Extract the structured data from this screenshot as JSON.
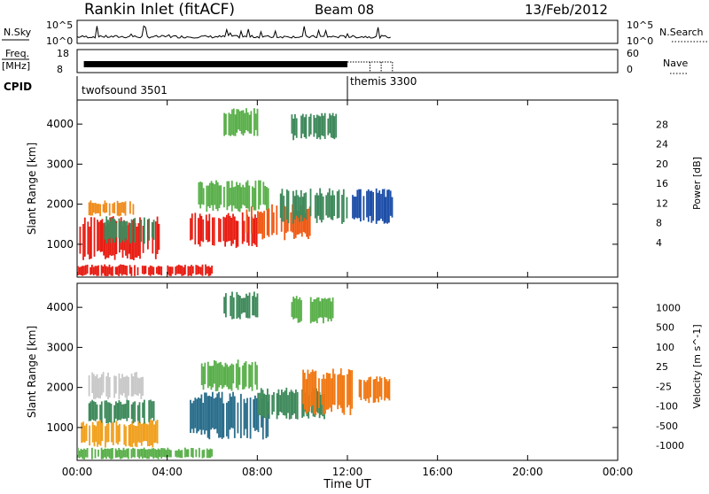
{
  "header": {
    "title": "Rankin Inlet (fitACF)",
    "beam": "Beam 08",
    "date": "13/Feb/2012"
  },
  "status_panel": {
    "nsky_label": "N.Sky",
    "nsky_ticks": [
      "10^5",
      "10^0"
    ],
    "nsearch_label": "N.Search",
    "nsearch_ticks": [
      "10^5",
      "10^0"
    ],
    "freq_label_top": "Freq.",
    "freq_label_bottom": "[MHz]",
    "freq_ticks": [
      "18",
      "8"
    ],
    "nave_label": "Nave",
    "nave_ticks": [
      "60",
      "0"
    ],
    "cpid_label": "CPID",
    "cpid_segments": [
      {
        "name": "twofsound 3501",
        "start_hour": 0
      },
      {
        "name": "themis 3300",
        "start_hour": 12
      }
    ]
  },
  "chart_data": [
    {
      "type": "heatmap",
      "title": "",
      "parameter": "Power",
      "colorbar_label": "Power [dB]",
      "colorbar_ticks": [
        "4",
        "8",
        "12",
        "16",
        "20",
        "24",
        "28"
      ],
      "colorbar_colors": [
        "#1414e6",
        "#1e4fa8",
        "#3f8a5c",
        "#5ab04b",
        "#f0be1e",
        "#f08c1e",
        "#f05a14",
        "#e81e14"
      ],
      "xlabel": "Time UT",
      "ylabel": "Slant Range [km]",
      "x_ticks": [
        "00:00",
        "04:00",
        "08:00",
        "12:00",
        "16:00",
        "20:00",
        "00:00"
      ],
      "y_ticks": [
        "1000",
        "2000",
        "3000",
        "4000"
      ],
      "xlim_hours": [
        0,
        24
      ],
      "ylim_km": [
        180,
        4600
      ],
      "blobs": [
        {
          "t0": 0.1,
          "t1": 3.6,
          "r0": 600,
          "r1": 1700,
          "color": "#e81e14"
        },
        {
          "t0": 1.2,
          "t1": 3.5,
          "r0": 1000,
          "r1": 1700,
          "color": "#3f8a5c"
        },
        {
          "t0": 0.5,
          "t1": 2.5,
          "r0": 1700,
          "r1": 2100,
          "color": "#f08c1e"
        },
        {
          "t0": 5.0,
          "t1": 8.0,
          "r0": 900,
          "r1": 1800,
          "color": "#e81e14"
        },
        {
          "t0": 5.3,
          "t1": 8.5,
          "r0": 1800,
          "r1": 2600,
          "color": "#5ab04b"
        },
        {
          "t0": 7.5,
          "t1": 10.5,
          "r0": 1100,
          "r1": 2000,
          "color": "#f05a14"
        },
        {
          "t0": 9.0,
          "t1": 12.0,
          "r0": 1500,
          "r1": 2400,
          "color": "#3f8a5c"
        },
        {
          "t0": 12.2,
          "t1": 14.0,
          "r0": 1500,
          "r1": 2400,
          "color": "#1e4fa8"
        },
        {
          "t0": 6.5,
          "t1": 8.0,
          "r0": 3700,
          "r1": 4400,
          "color": "#5ab04b"
        },
        {
          "t0": 9.5,
          "t1": 11.5,
          "r0": 3600,
          "r1": 4300,
          "color": "#3f8a5c"
        },
        {
          "t0": 0.0,
          "t1": 6.0,
          "r0": 200,
          "r1": 500,
          "color": "#e81e14"
        }
      ]
    },
    {
      "type": "heatmap",
      "title": "",
      "parameter": "Velocity",
      "colorbar_label": "Velocity [m s^-1]",
      "colorbar_ticks": [
        "1000",
        "500",
        "100",
        "25",
        "-25",
        "-100",
        "-500",
        "-1000"
      ],
      "colorbar_colors": [
        "#1e46b4",
        "#2a6e8c",
        "#3f8a5c",
        "#5ab04b",
        "#c8c8c8",
        "#f0a01e",
        "#f07814",
        "#e81e14"
      ],
      "xlabel": "Time UT",
      "ylabel": "Slant Range [km]",
      "x_ticks": [
        "00:00",
        "04:00",
        "08:00",
        "12:00",
        "16:00",
        "20:00",
        "00:00"
      ],
      "y_ticks": [
        "1000",
        "2000",
        "3000",
        "4000"
      ],
      "xlim_hours": [
        0,
        24
      ],
      "ylim_km": [
        180,
        4600
      ],
      "blobs": [
        {
          "t0": 0.1,
          "t1": 3.6,
          "r0": 500,
          "r1": 1200,
          "color": "#f0a01e"
        },
        {
          "t0": 0.5,
          "t1": 3.5,
          "r0": 1100,
          "r1": 1700,
          "color": "#3f8a5c"
        },
        {
          "t0": 0.5,
          "t1": 3.0,
          "r0": 1700,
          "r1": 2400,
          "color": "#c8c8c8"
        },
        {
          "t0": 5.0,
          "t1": 8.5,
          "r0": 700,
          "r1": 1900,
          "color": "#2a6e8c"
        },
        {
          "t0": 5.5,
          "t1": 8.0,
          "r0": 1900,
          "r1": 2700,
          "color": "#5ab04b"
        },
        {
          "t0": 8.0,
          "t1": 11.0,
          "r0": 1200,
          "r1": 2000,
          "color": "#3f8a5c"
        },
        {
          "t0": 10.0,
          "t1": 12.2,
          "r0": 1300,
          "r1": 2500,
          "color": "#f07814"
        },
        {
          "t0": 12.5,
          "t1": 14.0,
          "r0": 1600,
          "r1": 2300,
          "color": "#f07814"
        },
        {
          "t0": 6.5,
          "t1": 8.0,
          "r0": 3700,
          "r1": 4400,
          "color": "#3f8a5c"
        },
        {
          "t0": 9.5,
          "t1": 11.5,
          "r0": 3600,
          "r1": 4300,
          "color": "#5ab04b"
        },
        {
          "t0": 0.0,
          "t1": 6.0,
          "r0": 200,
          "r1": 500,
          "color": "#5ab04b"
        }
      ]
    }
  ]
}
